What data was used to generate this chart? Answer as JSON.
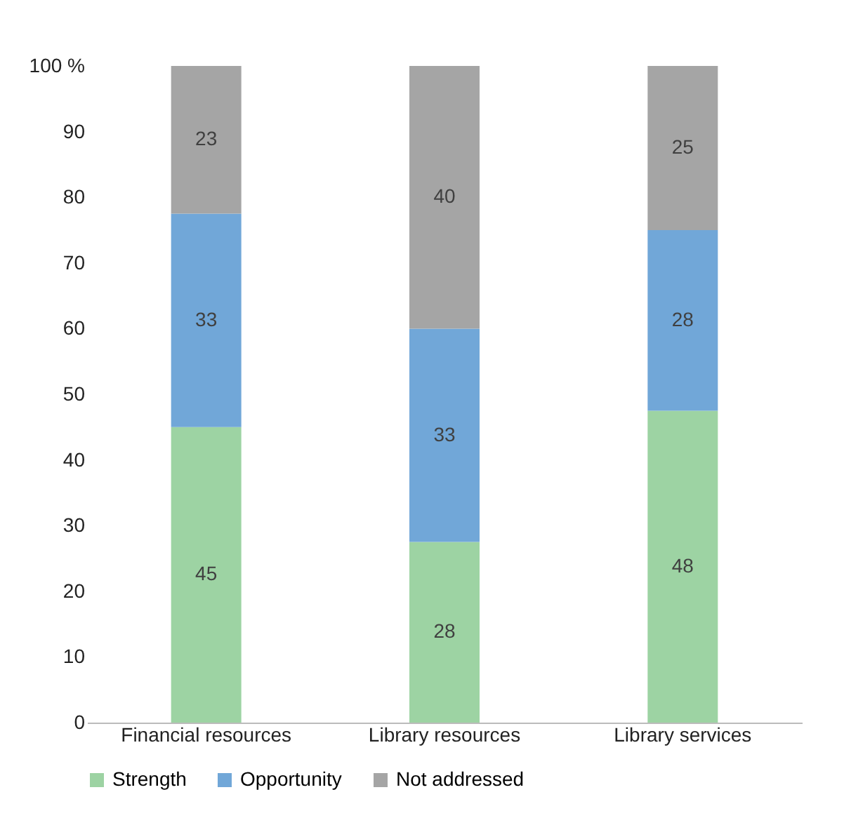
{
  "chart_data": {
    "type": "bar",
    "stacked": true,
    "categories": [
      "Financial resources",
      "Library resources",
      "Library services"
    ],
    "series": [
      {
        "name": "Strength",
        "color": "#9dd3a3",
        "values": [
          45,
          27.5,
          47.5
        ],
        "value_labels": [
          "45",
          "28",
          "48"
        ]
      },
      {
        "name": "Opportunity",
        "color": "#71a7d8",
        "values": [
          32.5,
          32.5,
          27.5
        ],
        "value_labels": [
          "33",
          "33",
          "28"
        ]
      },
      {
        "name": "Not addressed",
        "color": "#a5a5a5",
        "values": [
          22.5,
          40,
          25
        ],
        "value_labels": [
          "23",
          "40",
          "25"
        ]
      }
    ],
    "ylim": [
      0,
      100
    ],
    "yticks": [
      0,
      10,
      20,
      30,
      40,
      50,
      60,
      70,
      80,
      90,
      {
        "value": 100,
        "label": "100 %"
      }
    ],
    "grid": false,
    "legend": "bottom"
  }
}
